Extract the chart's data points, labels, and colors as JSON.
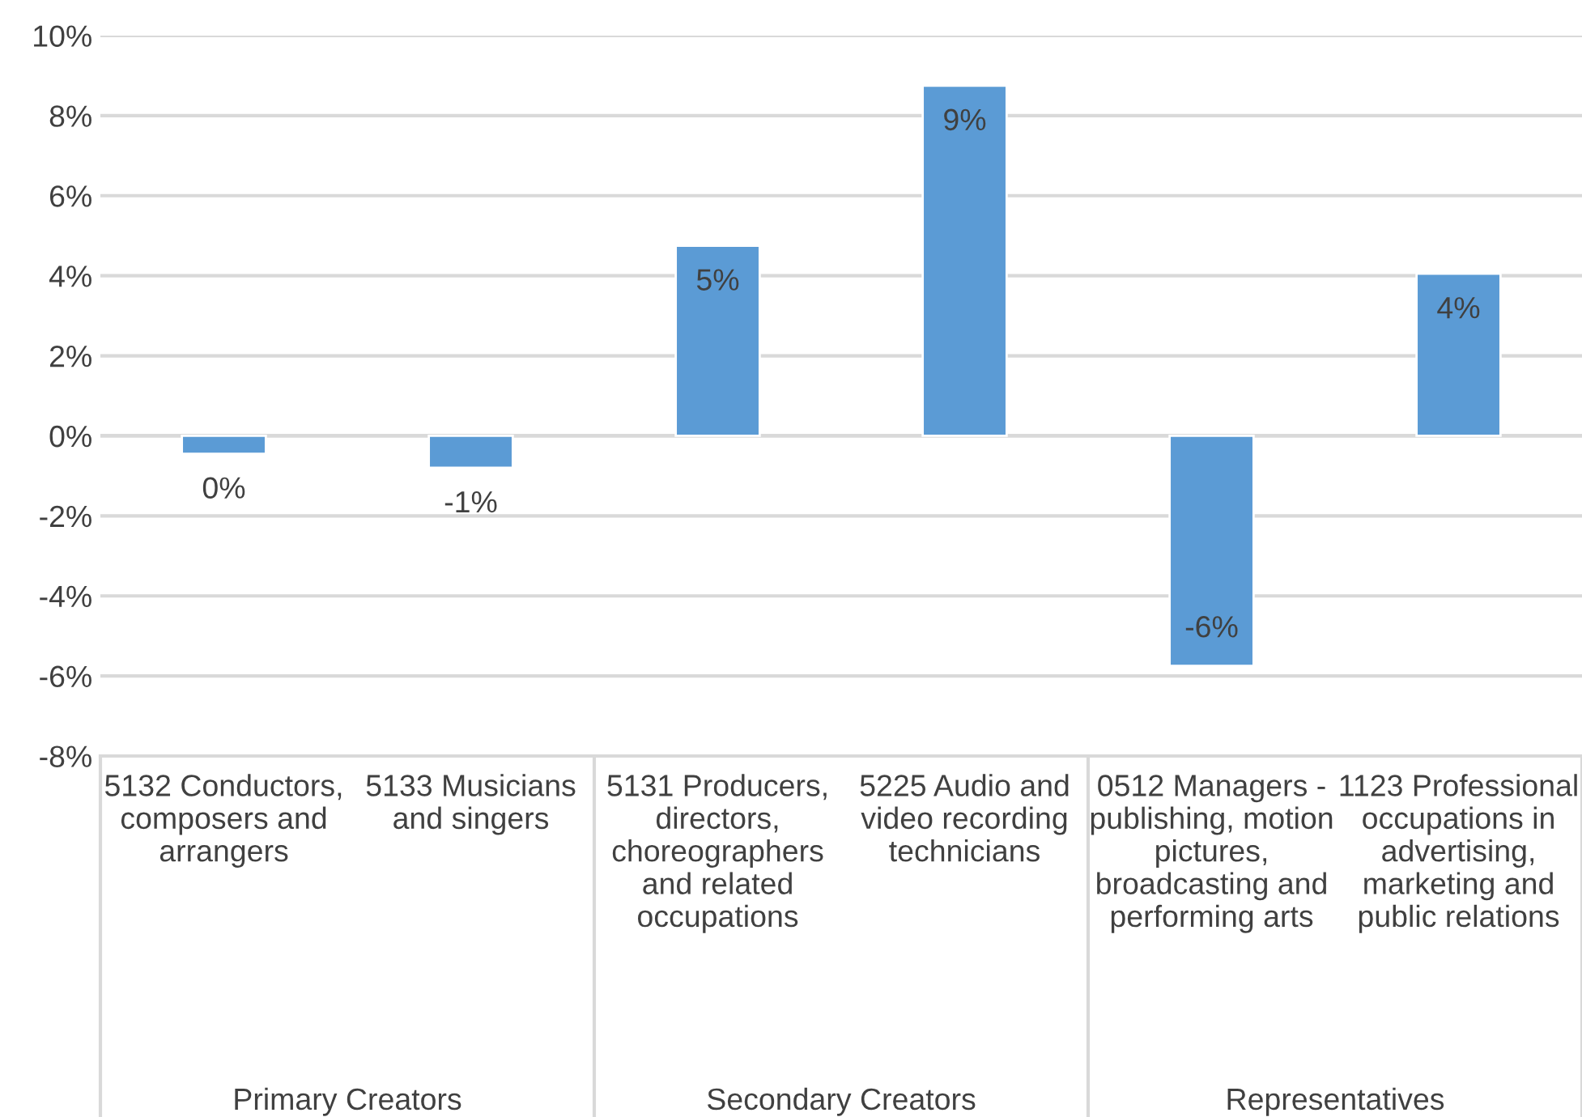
{
  "chart_data": {
    "type": "bar",
    "categories": [
      "5132 Conductors,\ncomposers and\narrangers",
      "5133 Musicians\nand singers",
      "5131 Producers,\ndirectors,\nchoreographers\nand related\noccupations",
      "5225 Audio and\nvideo recording\ntechnicians",
      "0512 Managers -\npublishing, motion\npictures,\nbroadcasting and\nperforming arts",
      "1123 Professional\noccupations in\nadvertising,\nmarketing and\npublic relations"
    ],
    "values": [
      -0.45,
      -0.8,
      4.75,
      8.75,
      -5.75,
      4.05
    ],
    "value_labels": [
      "0%",
      "-1%",
      "5%",
      "9%",
      "-6%",
      "4%"
    ],
    "color": "#5b9bd5",
    "ylim": [
      -8,
      10
    ],
    "yticks": [
      {
        "value": -8,
        "label": "-8%"
      },
      {
        "value": -6,
        "label": "-6%"
      },
      {
        "value": -4,
        "label": "-4%"
      },
      {
        "value": -2,
        "label": "-2%"
      },
      {
        "value": 0,
        "label": "0%"
      },
      {
        "value": 2,
        "label": "2%"
      },
      {
        "value": 4,
        "label": "4%"
      },
      {
        "value": 6,
        "label": "6%"
      },
      {
        "value": 8,
        "label": "8%"
      },
      {
        "value": 10,
        "label": "10%"
      }
    ],
    "grid": "y",
    "annotations": [
      "Primary Creators",
      "Secondary Creators",
      "Representatives"
    ]
  }
}
